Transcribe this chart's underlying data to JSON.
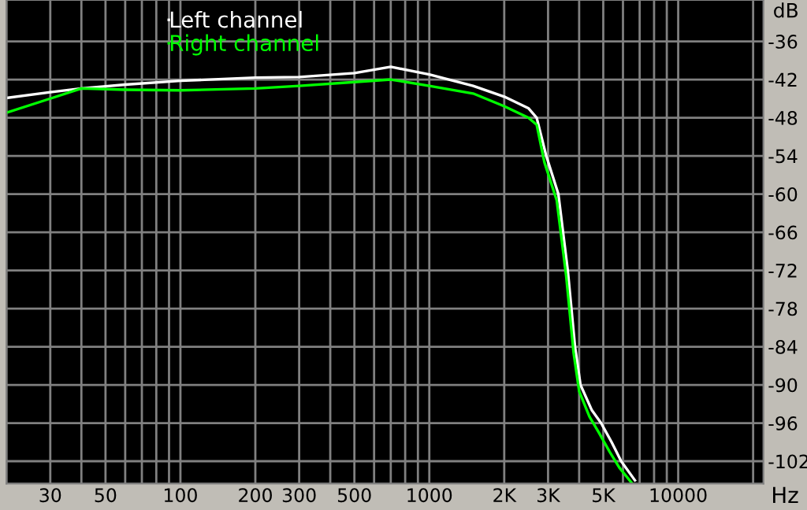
{
  "chart_data": {
    "type": "line",
    "xlabel": "Hz",
    "ylabel": "dB",
    "log": "x",
    "grid": true,
    "legend": "top left",
    "xlim": [
      20,
      22000
    ],
    "ylim": [
      -105.5,
      -29.5
    ],
    "xticks": [
      30,
      50,
      100,
      200,
      300,
      500,
      1000,
      {
        "value": 2000,
        "label": "2K"
      },
      {
        "value": 3000,
        "label": "3K"
      },
      {
        "value": 5000,
        "label": "5K"
      },
      10000
    ],
    "yticks": [
      -36,
      -42,
      -48,
      -54,
      -60,
      -66,
      -72,
      -78,
      -84,
      -90,
      -96,
      -102
    ],
    "series": [
      {
        "name": "Left channel",
        "color": "#ffffff",
        "x": [
          20,
          30,
          40,
          60,
          100,
          200,
          300,
          500,
          700,
          1000,
          1500,
          2000,
          2500,
          2700,
          2950,
          3300,
          3600,
          3850,
          4050,
          4500,
          4900,
          5400,
          5900,
          6700
        ],
        "values": [
          -44.9,
          -44.0,
          -43.4,
          -42.8,
          -42.2,
          -41.7,
          -41.6,
          -41.0,
          -40.0,
          -41.2,
          -43.0,
          -44.7,
          -46.5,
          -48.0,
          -54.0,
          -60.0,
          -72.0,
          -84.0,
          -90.0,
          -94.0,
          -96.0,
          -99.0,
          -102.0,
          -105.0
        ]
      },
      {
        "name": "Right channel",
        "color": "#00ff00",
        "x": [
          20,
          30,
          40,
          60,
          100,
          200,
          300,
          500,
          700,
          1000,
          1500,
          2000,
          2500,
          2700,
          2900,
          3250,
          3550,
          3800,
          4000,
          4400,
          4800,
          5300,
          5800,
          6500
        ],
        "values": [
          -47.2,
          -45.0,
          -43.4,
          -43.6,
          -43.7,
          -43.4,
          -43.0,
          -42.4,
          -42.0,
          -43.0,
          -44.2,
          -46.2,
          -48.0,
          -49.1,
          -55.0,
          -61.0,
          -73.0,
          -85.0,
          -91.0,
          -95.0,
          -97.5,
          -100.5,
          -103.0,
          -105.4
        ]
      }
    ]
  }
}
